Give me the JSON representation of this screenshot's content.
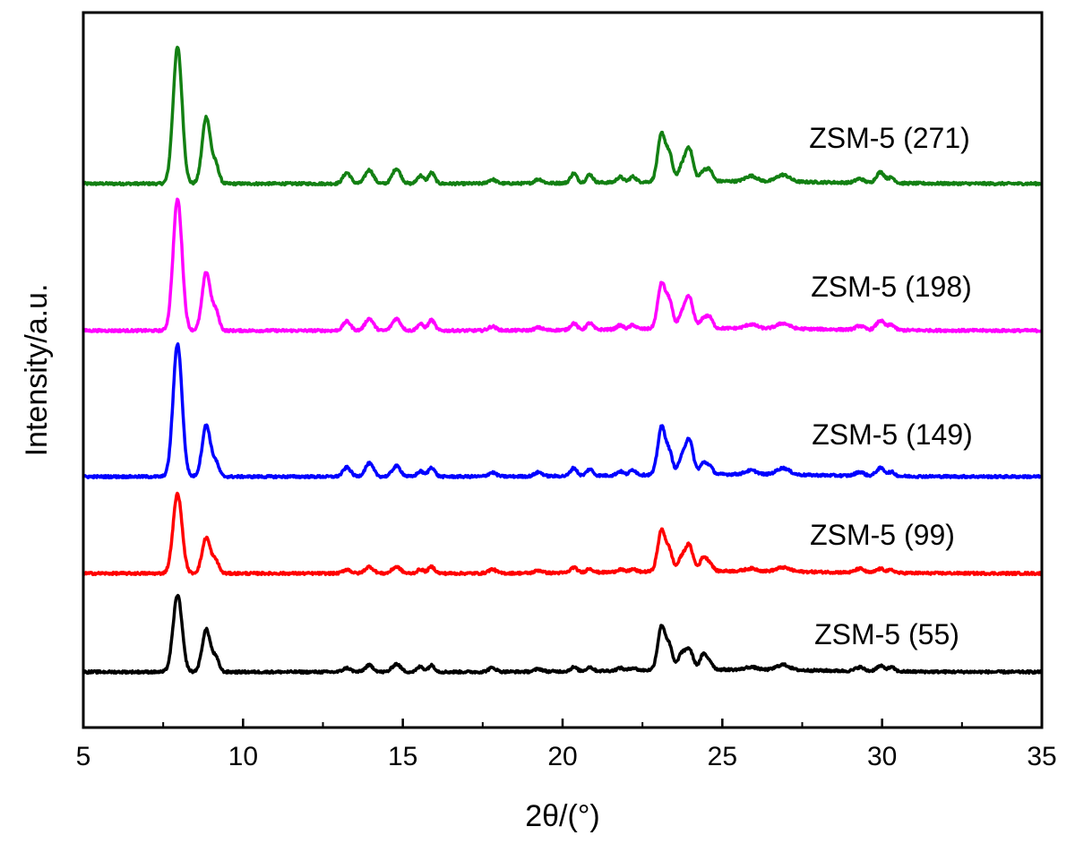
{
  "chart_data": {
    "type": "line",
    "title": "",
    "xlabel": "2θ/(°)",
    "ylabel": "Intensity/a.u.",
    "xlim": [
      5,
      35
    ],
    "x_ticks": [
      5,
      10,
      15,
      20,
      25,
      30,
      35
    ],
    "y_ticks_shown": false,
    "grid": false,
    "legend": "none (series labelled directly beside each trace)",
    "peak_positions_2theta": [
      7.95,
      8.85,
      9.15,
      13.25,
      13.95,
      14.8,
      15.55,
      15.9,
      17.8,
      19.25,
      20.35,
      20.85,
      21.8,
      22.2,
      23.1,
      23.35,
      23.7,
      23.95,
      24.4,
      24.6,
      25.9,
      26.9,
      29.3,
      29.95,
      30.3
    ],
    "series": [
      {
        "name": "ZSM-5 (271)",
        "color": "#138013",
        "baseline_rel": 0.075,
        "peak_intensities_rel": [
          1.0,
          0.49,
          0.13,
          0.08,
          0.1,
          0.11,
          0.06,
          0.08,
          0.03,
          0.03,
          0.07,
          0.06,
          0.04,
          0.04,
          0.35,
          0.18,
          0.08,
          0.25,
          0.07,
          0.08,
          0.04,
          0.05,
          0.03,
          0.08,
          0.04
        ]
      },
      {
        "name": "ZSM-5 (198)",
        "color": "#ff00ff",
        "baseline_rel": 0.075,
        "peak_intensities_rel": [
          0.99,
          0.44,
          0.14,
          0.07,
          0.09,
          0.09,
          0.05,
          0.08,
          0.03,
          0.02,
          0.05,
          0.05,
          0.03,
          0.03,
          0.34,
          0.19,
          0.08,
          0.24,
          0.07,
          0.08,
          0.03,
          0.04,
          0.03,
          0.07,
          0.04
        ]
      },
      {
        "name": "ZSM-5 (149)",
        "color": "#0000ff",
        "baseline_rel": 0.075,
        "peak_intensities_rel": [
          1.0,
          0.39,
          0.1,
          0.07,
          0.1,
          0.08,
          0.04,
          0.07,
          0.03,
          0.03,
          0.06,
          0.05,
          0.03,
          0.04,
          0.36,
          0.15,
          0.09,
          0.27,
          0.08,
          0.06,
          0.03,
          0.05,
          0.03,
          0.06,
          0.03
        ]
      },
      {
        "name": "ZSM-5 (99)",
        "color": "#ff0000",
        "baseline_rel": 0.075,
        "peak_intensities_rel": [
          0.6,
          0.27,
          0.09,
          0.03,
          0.05,
          0.05,
          0.03,
          0.05,
          0.03,
          0.02,
          0.04,
          0.03,
          0.02,
          0.02,
          0.31,
          0.14,
          0.08,
          0.2,
          0.1,
          0.06,
          0.02,
          0.03,
          0.03,
          0.03,
          0.02
        ]
      },
      {
        "name": "ZSM-5 (55)",
        "color": "#000000",
        "baseline_rel": 0.075,
        "peak_intensities_rel": [
          0.58,
          0.32,
          0.1,
          0.03,
          0.05,
          0.06,
          0.04,
          0.05,
          0.03,
          0.02,
          0.03,
          0.03,
          0.02,
          0.02,
          0.33,
          0.16,
          0.1,
          0.16,
          0.11,
          0.06,
          0.02,
          0.04,
          0.03,
          0.04,
          0.03
        ]
      }
    ]
  }
}
